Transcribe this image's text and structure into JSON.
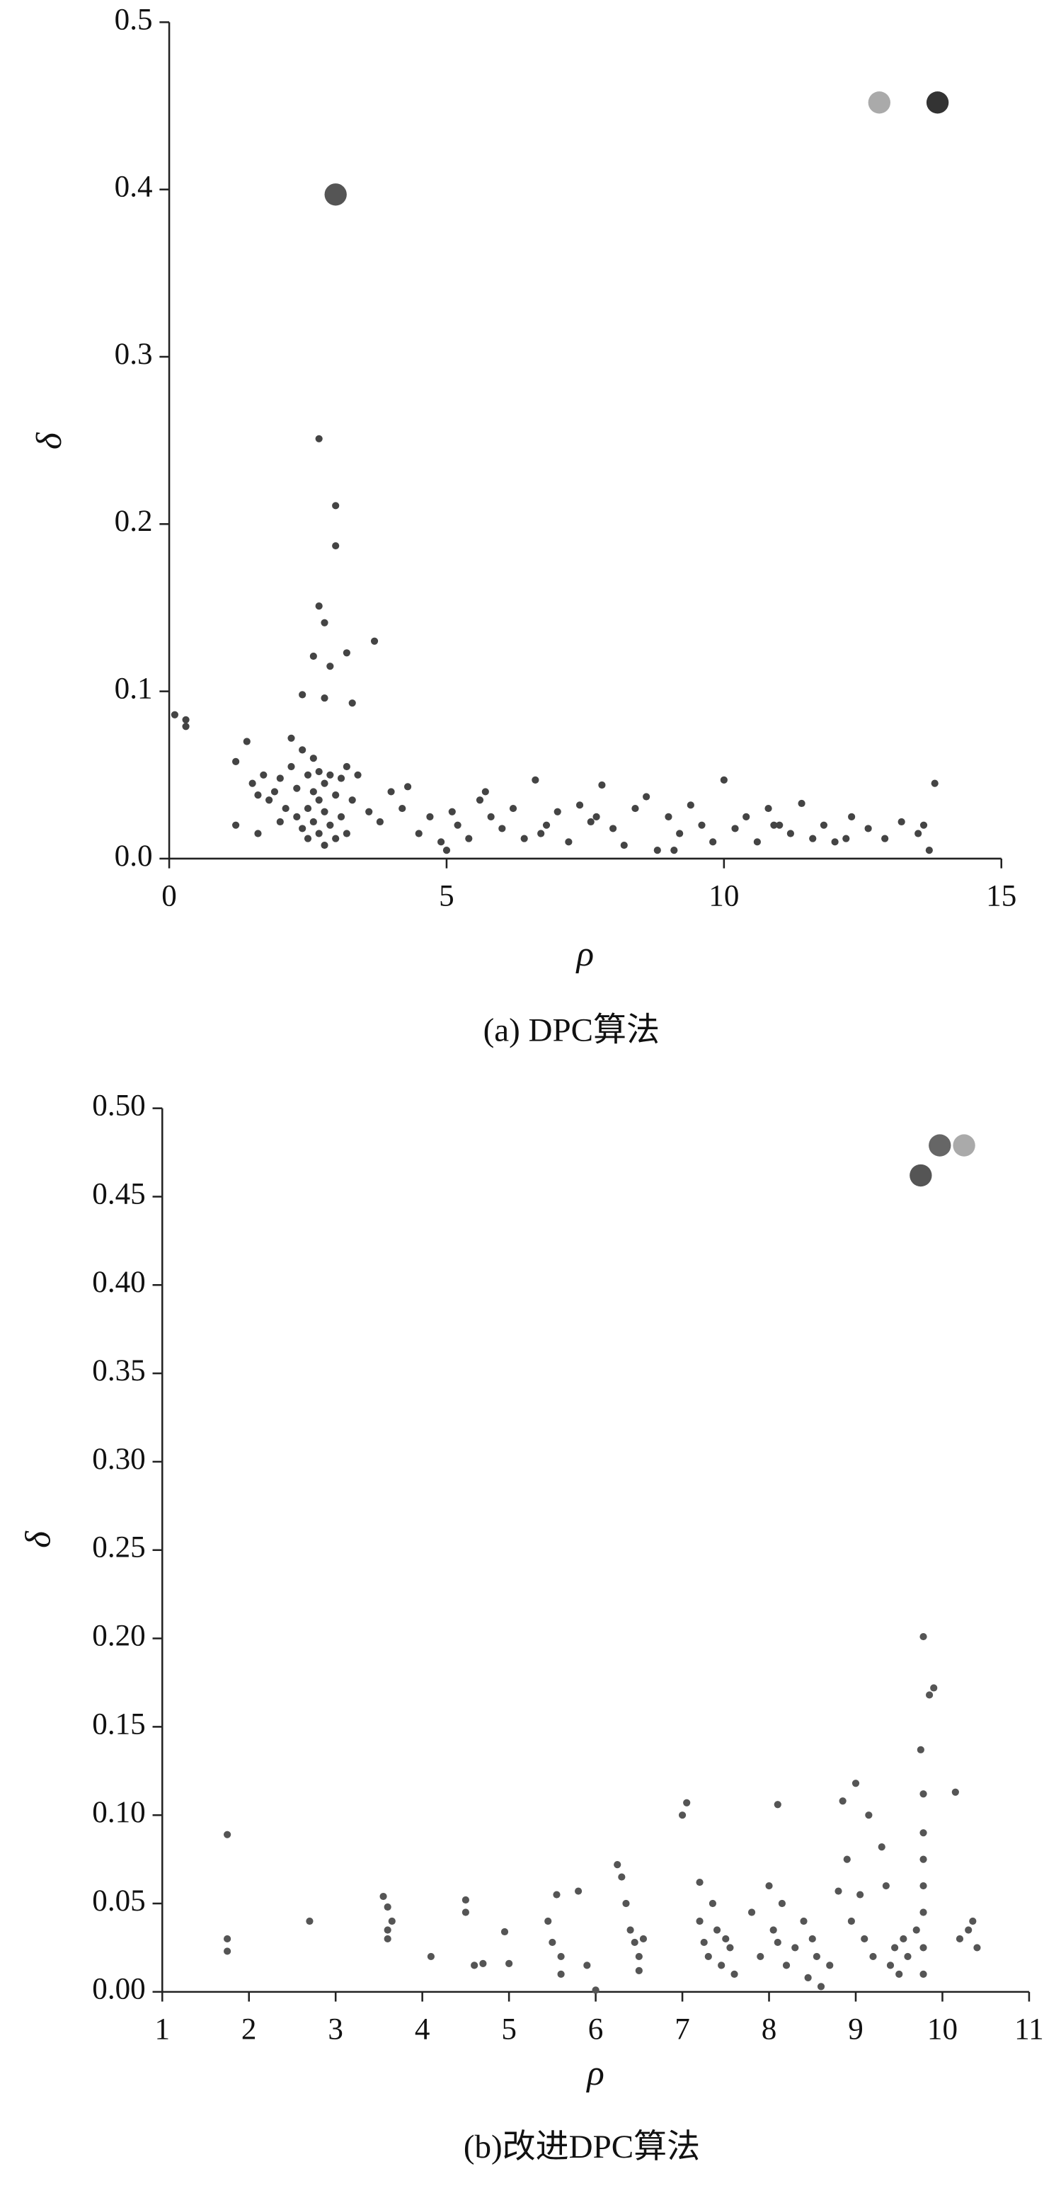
{
  "chart_data": [
    {
      "type": "scatter",
      "caption": "(a) DPC算法",
      "xlabel": "ρ",
      "ylabel": "δ",
      "xlim": [
        0,
        15
      ],
      "ylim": [
        0,
        0.5
      ],
      "xticks": [
        0,
        5,
        10,
        15
      ],
      "yticks": [
        {
          "value": 0,
          "label": "0.0"
        },
        0.1,
        0.2,
        0.3,
        0.4,
        0.5
      ],
      "color": "#444444",
      "x": [
        0.1,
        0.3,
        0.3,
        2.7,
        3.0,
        3.0,
        2.7,
        2.8,
        3.7,
        3.2,
        2.6,
        2.9,
        2.4,
        2.8,
        3.3,
        1.2,
        1.4,
        1.5,
        1.6,
        1.7,
        1.8,
        1.9,
        2.0,
        2.1,
        2.2,
        2.2,
        2.3,
        2.3,
        2.4,
        2.4,
        2.5,
        2.5,
        2.5,
        2.6,
        2.6,
        2.6,
        2.7,
        2.7,
        2.7,
        2.8,
        2.8,
        2.8,
        2.9,
        2.9,
        3.0,
        3.0,
        3.1,
        3.1,
        3.2,
        3.3,
        3.4,
        1.2,
        1.6,
        2.0,
        3.2,
        3.6,
        3.8,
        4.0,
        4.2,
        4.3,
        4.5,
        4.7,
        4.9,
        5.0,
        5.2,
        5.4,
        5.6,
        5.7,
        5.8,
        6.0,
        6.2,
        6.4,
        6.6,
        6.8,
        7.0,
        7.2,
        7.4,
        7.6,
        7.8,
        8.0,
        8.2,
        8.4,
        8.6,
        8.8,
        9.0,
        9.2,
        9.4,
        9.6,
        9.8,
        10.0,
        10.2,
        10.4,
        10.6,
        10.8,
        11.0,
        11.2,
        11.4,
        11.6,
        11.8,
        12.0,
        12.3,
        12.6,
        12.9,
        13.2,
        13.5,
        13.7,
        13.8,
        13.6,
        12.2,
        6.7,
        5.1,
        7.7,
        9.1,
        10.9
      ],
      "y": [
        0.086,
        0.083,
        0.079,
        0.251,
        0.211,
        0.187,
        0.151,
        0.141,
        0.13,
        0.123,
        0.121,
        0.115,
        0.098,
        0.096,
        0.093,
        0.058,
        0.07,
        0.045,
        0.038,
        0.05,
        0.035,
        0.04,
        0.048,
        0.03,
        0.072,
        0.055,
        0.042,
        0.025,
        0.065,
        0.018,
        0.05,
        0.03,
        0.012,
        0.06,
        0.04,
        0.022,
        0.052,
        0.035,
        0.015,
        0.045,
        0.028,
        0.008,
        0.05,
        0.02,
        0.038,
        0.012,
        0.048,
        0.025,
        0.055,
        0.035,
        0.05,
        0.02,
        0.015,
        0.022,
        0.015,
        0.028,
        0.022,
        0.04,
        0.03,
        0.043,
        0.015,
        0.025,
        0.01,
        0.005,
        0.02,
        0.012,
        0.035,
        0.04,
        0.025,
        0.018,
        0.03,
        0.012,
        0.047,
        0.02,
        0.028,
        0.01,
        0.032,
        0.022,
        0.044,
        0.018,
        0.008,
        0.03,
        0.037,
        0.005,
        0.025,
        0.015,
        0.032,
        0.02,
        0.01,
        0.047,
        0.018,
        0.025,
        0.01,
        0.03,
        0.02,
        0.015,
        0.033,
        0.012,
        0.02,
        0.01,
        0.025,
        0.018,
        0.012,
        0.022,
        0.015,
        0.005,
        0.045,
        0.02,
        0.012,
        0.015,
        0.028,
        0.025,
        0.005,
        0.02
      ],
      "centers": {
        "x": [
          3.0,
          12.8,
          13.85
        ],
        "y": [
          0.397,
          0.452,
          0.452
        ],
        "colors": [
          "#555555",
          "#aaaaaa",
          "#333333"
        ]
      }
    },
    {
      "type": "scatter",
      "caption": "(b)改进DPC算法",
      "xlabel": "ρ",
      "ylabel": "δ",
      "xlim": [
        1,
        11
      ],
      "ylim": [
        0,
        0.5
      ],
      "xticks": [
        1,
        2,
        3,
        4,
        5,
        6,
        7,
        8,
        9,
        10,
        11
      ],
      "yticks": [
        {
          "value": 0,
          "label": "0.00"
        },
        0.05,
        {
          "value": 0.1,
          "label": "0.10"
        },
        0.15,
        {
          "value": 0.2,
          "label": "0.20"
        },
        0.25,
        {
          "value": 0.3,
          "label": "0.30"
        },
        0.35,
        {
          "value": 0.4,
          "label": "0.40"
        },
        0.45,
        {
          "value": 0.5,
          "label": "0.50"
        }
      ],
      "color": "#555555",
      "x": [
        1.75,
        1.75,
        1.75,
        2.7,
        3.55,
        3.6,
        3.6,
        3.65,
        3.6,
        4.1,
        4.5,
        4.5,
        4.6,
        4.7,
        4.95,
        5.0,
        5.45,
        5.5,
        5.55,
        5.6,
        5.6,
        5.8,
        5.9,
        6.0,
        6.25,
        6.3,
        6.35,
        6.4,
        6.45,
        6.5,
        6.55,
        6.5,
        7.0,
        7.05,
        7.2,
        7.2,
        7.25,
        7.3,
        7.35,
        7.4,
        7.45,
        7.5,
        7.55,
        7.6,
        7.8,
        7.9,
        8.0,
        8.05,
        8.1,
        8.1,
        8.15,
        8.2,
        8.3,
        8.4,
        8.45,
        8.5,
        8.55,
        8.6,
        8.7,
        8.8,
        8.85,
        8.9,
        8.95,
        9.0,
        9.05,
        9.1,
        9.15,
        9.2,
        9.3,
        9.35,
        9.4,
        9.45,
        9.5,
        9.55,
        9.6,
        9.7,
        9.75,
        9.78,
        9.78,
        9.78,
        9.78,
        9.78,
        9.78,
        9.78,
        9.78,
        9.85,
        9.9,
        10.15,
        10.2,
        10.3,
        10.35,
        10.4
      ],
      "y": [
        0.089,
        0.03,
        0.023,
        0.04,
        0.054,
        0.048,
        0.035,
        0.04,
        0.03,
        0.02,
        0.052,
        0.045,
        0.015,
        0.016,
        0.034,
        0.016,
        0.04,
        0.028,
        0.055,
        0.02,
        0.01,
        0.057,
        0.015,
        0.001,
        0.072,
        0.065,
        0.05,
        0.035,
        0.028,
        0.02,
        0.03,
        0.012,
        0.1,
        0.107,
        0.062,
        0.04,
        0.028,
        0.02,
        0.05,
        0.035,
        0.015,
        0.03,
        0.025,
        0.01,
        0.045,
        0.02,
        0.06,
        0.035,
        0.028,
        0.106,
        0.05,
        0.015,
        0.025,
        0.04,
        0.008,
        0.03,
        0.02,
        0.003,
        0.015,
        0.057,
        0.108,
        0.075,
        0.04,
        0.118,
        0.055,
        0.03,
        0.1,
        0.02,
        0.082,
        0.06,
        0.015,
        0.025,
        0.01,
        0.03,
        0.02,
        0.035,
        0.137,
        0.201,
        0.112,
        0.09,
        0.075,
        0.06,
        0.045,
        0.025,
        0.01,
        0.168,
        0.172,
        0.113,
        0.03,
        0.035,
        0.04,
        0.025
      ],
      "centers": {
        "x": [
          9.75,
          9.97,
          10.25
        ],
        "y": [
          0.462,
          0.479,
          0.479
        ],
        "colors": [
          "#555555",
          "#666666",
          "#aaaaaa"
        ]
      }
    }
  ]
}
